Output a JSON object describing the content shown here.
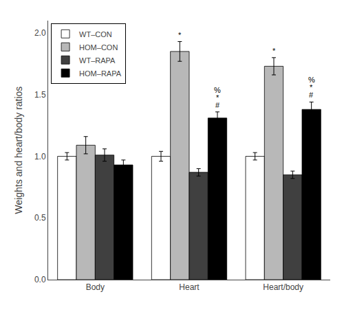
{
  "chart_data": {
    "type": "bar",
    "categories": [
      "Body",
      "Heart",
      "Heart/body"
    ],
    "series": [
      {
        "name": "WT–CON",
        "color": "#ffffff",
        "edge_color": "#000000",
        "values": [
          1.0,
          1.0,
          1.0
        ],
        "errors": [
          0.03,
          0.04,
          0.03
        ]
      },
      {
        "name": "HOM–CON",
        "color": "#b8b8b8",
        "edge_color": "#000000",
        "values": [
          1.09,
          1.85,
          1.73
        ],
        "errors": [
          0.07,
          0.08,
          0.07
        ]
      },
      {
        "name": "WT–RAPA",
        "color": "#404040",
        "edge_color": "#000000",
        "values": [
          1.01,
          0.87,
          0.85
        ],
        "errors": [
          0.05,
          0.03,
          0.03
        ]
      },
      {
        "name": "HOM–RAPA",
        "color": "#000000",
        "edge_color": "#000000",
        "values": [
          0.93,
          1.31,
          1.38
        ],
        "errors": [
          0.04,
          0.05,
          0.06
        ]
      }
    ],
    "ylabel": "Weights and heart/body ratios",
    "ylim": [
      0,
      2.1
    ],
    "yticks": [
      {
        "value": 0,
        "label": "0.0"
      },
      0.5,
      {
        "value": 1.0,
        "label": "1.0"
      },
      1.5,
      {
        "value": 2.0,
        "label": "2.0"
      }
    ],
    "grid": false,
    "legend": "upper left",
    "annotations": [
      {
        "category": "Heart",
        "series": "HOM–CON",
        "texts": [
          "*"
        ]
      },
      {
        "category": "Heart",
        "series": "HOM–RAPA",
        "texts": [
          "#",
          "*",
          "%"
        ]
      },
      {
        "category": "Heart/body",
        "series": "HOM–CON",
        "texts": [
          "*"
        ]
      },
      {
        "category": "Heart/body",
        "series": "HOM–RAPA",
        "texts": [
          "#",
          "*",
          "%"
        ]
      }
    ]
  }
}
